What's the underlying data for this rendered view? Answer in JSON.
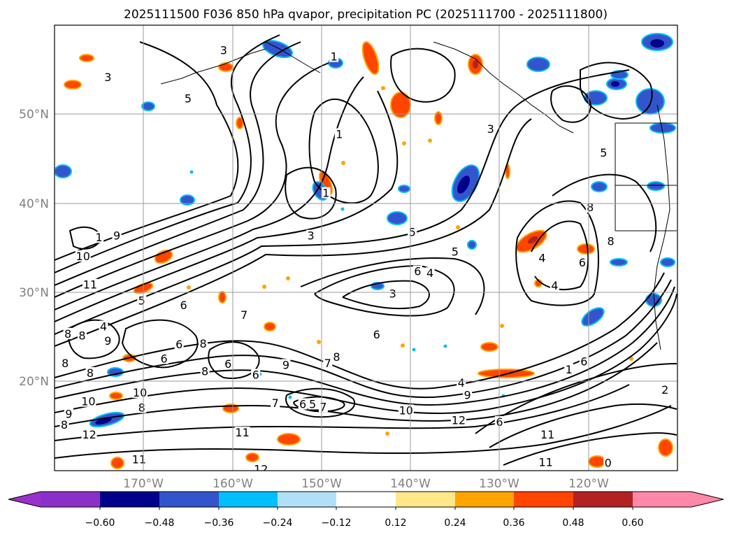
{
  "chart_data": {
    "type": "map",
    "title": "2025111500 F036 850 hPa qvapor, precipitation PC (2025111700 - 2025111800)",
    "lon_range": [
      -180,
      -110
    ],
    "lat_range": [
      10,
      60
    ],
    "lat_ticks": [
      {
        "lat": 50,
        "label": "50°N"
      },
      {
        "lat": 40,
        "label": "40°N"
      },
      {
        "lat": 30,
        "label": "30°N"
      },
      {
        "lat": 20,
        "label": "20°N"
      }
    ],
    "lon_ticks": [
      {
        "lon": -170,
        "label": "170°W"
      },
      {
        "lon": -160,
        "label": "160°W"
      },
      {
        "lon": -150,
        "label": "150°W"
      },
      {
        "lon": -140,
        "label": "140°W"
      },
      {
        "lon": -130,
        "label": "130°W"
      },
      {
        "lon": -120,
        "label": "120°W"
      }
    ],
    "grid": true,
    "colorbar": {
      "min_color": "#9932cc",
      "max_color": "#ff88aa",
      "colors": [
        "#8b2fc9",
        "#00008b",
        "#3355cc",
        "#00bfff",
        "#b0e0f8",
        "#ffffff",
        "#ffe88a",
        "#ffa500",
        "#ff4500",
        "#b22222",
        "#ff88aa"
      ],
      "tick_labels": [
        "−0.60",
        "−0.48",
        "−0.36",
        "−0.24",
        "−0.12",
        "0.12",
        "0.24",
        "0.36",
        "0.48",
        "0.60"
      ]
    },
    "contour_labels": [
      {
        "text": "3",
        "lon": -174,
        "lat": 54.2
      },
      {
        "text": "3",
        "lon": -161,
        "lat": 57.2
      },
      {
        "text": "5",
        "lon": -165,
        "lat": 51.8
      },
      {
        "text": "1",
        "lon": -148.6,
        "lat": 56.5
      },
      {
        "text": "1",
        "lon": -148,
        "lat": 47.8
      },
      {
        "text": "1",
        "lon": -149.5,
        "lat": 41.2
      },
      {
        "text": "3",
        "lon": -131,
        "lat": 48.4
      },
      {
        "text": "5",
        "lon": -118.3,
        "lat": 45.7
      },
      {
        "text": "9",
        "lon": -173,
        "lat": 36.4
      },
      {
        "text": "1",
        "lon": -175,
        "lat": 36.2
      },
      {
        "text": "10",
        "lon": -176.8,
        "lat": 34.1
      },
      {
        "text": "11",
        "lon": -176,
        "lat": 30.9
      },
      {
        "text": "5",
        "lon": -170.2,
        "lat": 29.1
      },
      {
        "text": "4",
        "lon": -174.5,
        "lat": 26.2
      },
      {
        "text": "8",
        "lon": -178.5,
        "lat": 25.4
      },
      {
        "text": "8",
        "lon": -176.9,
        "lat": 25.2
      },
      {
        "text": "8",
        "lon": -178.8,
        "lat": 22.1
      },
      {
        "text": "8",
        "lon": -176,
        "lat": 21.0
      },
      {
        "text": "9",
        "lon": -174,
        "lat": 24.6
      },
      {
        "text": "6",
        "lon": -165.5,
        "lat": 28.6
      },
      {
        "text": "6",
        "lon": -166,
        "lat": 24.2
      },
      {
        "text": "8",
        "lon": -163.3,
        "lat": 24.3
      },
      {
        "text": "6",
        "lon": -167.7,
        "lat": 22.6
      },
      {
        "text": "8",
        "lon": -163.1,
        "lat": 21.2
      },
      {
        "text": "6",
        "lon": -160.5,
        "lat": 22.0
      },
      {
        "text": "6",
        "lon": -157.4,
        "lat": 20.8
      },
      {
        "text": "10",
        "lon": -170.4,
        "lat": 18.8
      },
      {
        "text": "10",
        "lon": -176.2,
        "lat": 17.8
      },
      {
        "text": "8",
        "lon": -170.2,
        "lat": 17.1
      },
      {
        "text": "9",
        "lon": -178.4,
        "lat": 16.4
      },
      {
        "text": "8",
        "lon": -178.9,
        "lat": 15.2
      },
      {
        "text": "12",
        "lon": -176.1,
        "lat": 14.1
      },
      {
        "text": "11",
        "lon": -170.5,
        "lat": 11.3
      },
      {
        "text": "11",
        "lon": -158.9,
        "lat": 14.3
      },
      {
        "text": "12",
        "lon": -156.8,
        "lat": 10.2
      },
      {
        "text": "7",
        "lon": -155.2,
        "lat": 17.6
      },
      {
        "text": "6",
        "lon": -152.1,
        "lat": 17.5
      },
      {
        "text": "5",
        "lon": -151.0,
        "lat": 17.5
      },
      {
        "text": "7",
        "lon": -149.8,
        "lat": 17.2
      },
      {
        "text": "9",
        "lon": -154,
        "lat": 21.9
      },
      {
        "text": "8",
        "lon": -148.3,
        "lat": 22.8
      },
      {
        "text": "7",
        "lon": -149.3,
        "lat": 22.1
      },
      {
        "text": "7",
        "lon": -158.7,
        "lat": 27.5
      },
      {
        "text": "3",
        "lon": -151.2,
        "lat": 36.4
      },
      {
        "text": "5",
        "lon": -139.8,
        "lat": 36.8
      },
      {
        "text": "5",
        "lon": -135,
        "lat": 34.6
      },
      {
        "text": "6",
        "lon": -139.2,
        "lat": 32.4
      },
      {
        "text": "4",
        "lon": -137.8,
        "lat": 32.2
      },
      {
        "text": "3",
        "lon": -142,
        "lat": 29.9
      },
      {
        "text": "6",
        "lon": -143.8,
        "lat": 25.3
      },
      {
        "text": "4",
        "lon": -134.3,
        "lat": 19.9
      },
      {
        "text": "10",
        "lon": -140.5,
        "lat": 16.8
      },
      {
        "text": "12",
        "lon": -134.6,
        "lat": 15.7
      },
      {
        "text": "9",
        "lon": -133.6,
        "lat": 18.5
      },
      {
        "text": "6",
        "lon": -130,
        "lat": 15.5
      },
      {
        "text": "4",
        "lon": -125.2,
        "lat": 33.9
      },
      {
        "text": "4",
        "lon": -123.8,
        "lat": 30.8
      },
      {
        "text": "6",
        "lon": -120.7,
        "lat": 33.4
      },
      {
        "text": "8",
        "lon": -119.8,
        "lat": 39.6
      },
      {
        "text": "8",
        "lon": -117.5,
        "lat": 35.8
      },
      {
        "text": "1",
        "lon": -122.2,
        "lat": 21.4
      },
      {
        "text": "6",
        "lon": -120.5,
        "lat": 22.3
      },
      {
        "text": "11",
        "lon": -124.6,
        "lat": 14.1
      },
      {
        "text": "11",
        "lon": -124.8,
        "lat": 11.0
      },
      {
        "text": "0",
        "lon": -117.8,
        "lat": 10.9
      },
      {
        "text": "2",
        "lon": -111.4,
        "lat": 19.1
      }
    ]
  }
}
